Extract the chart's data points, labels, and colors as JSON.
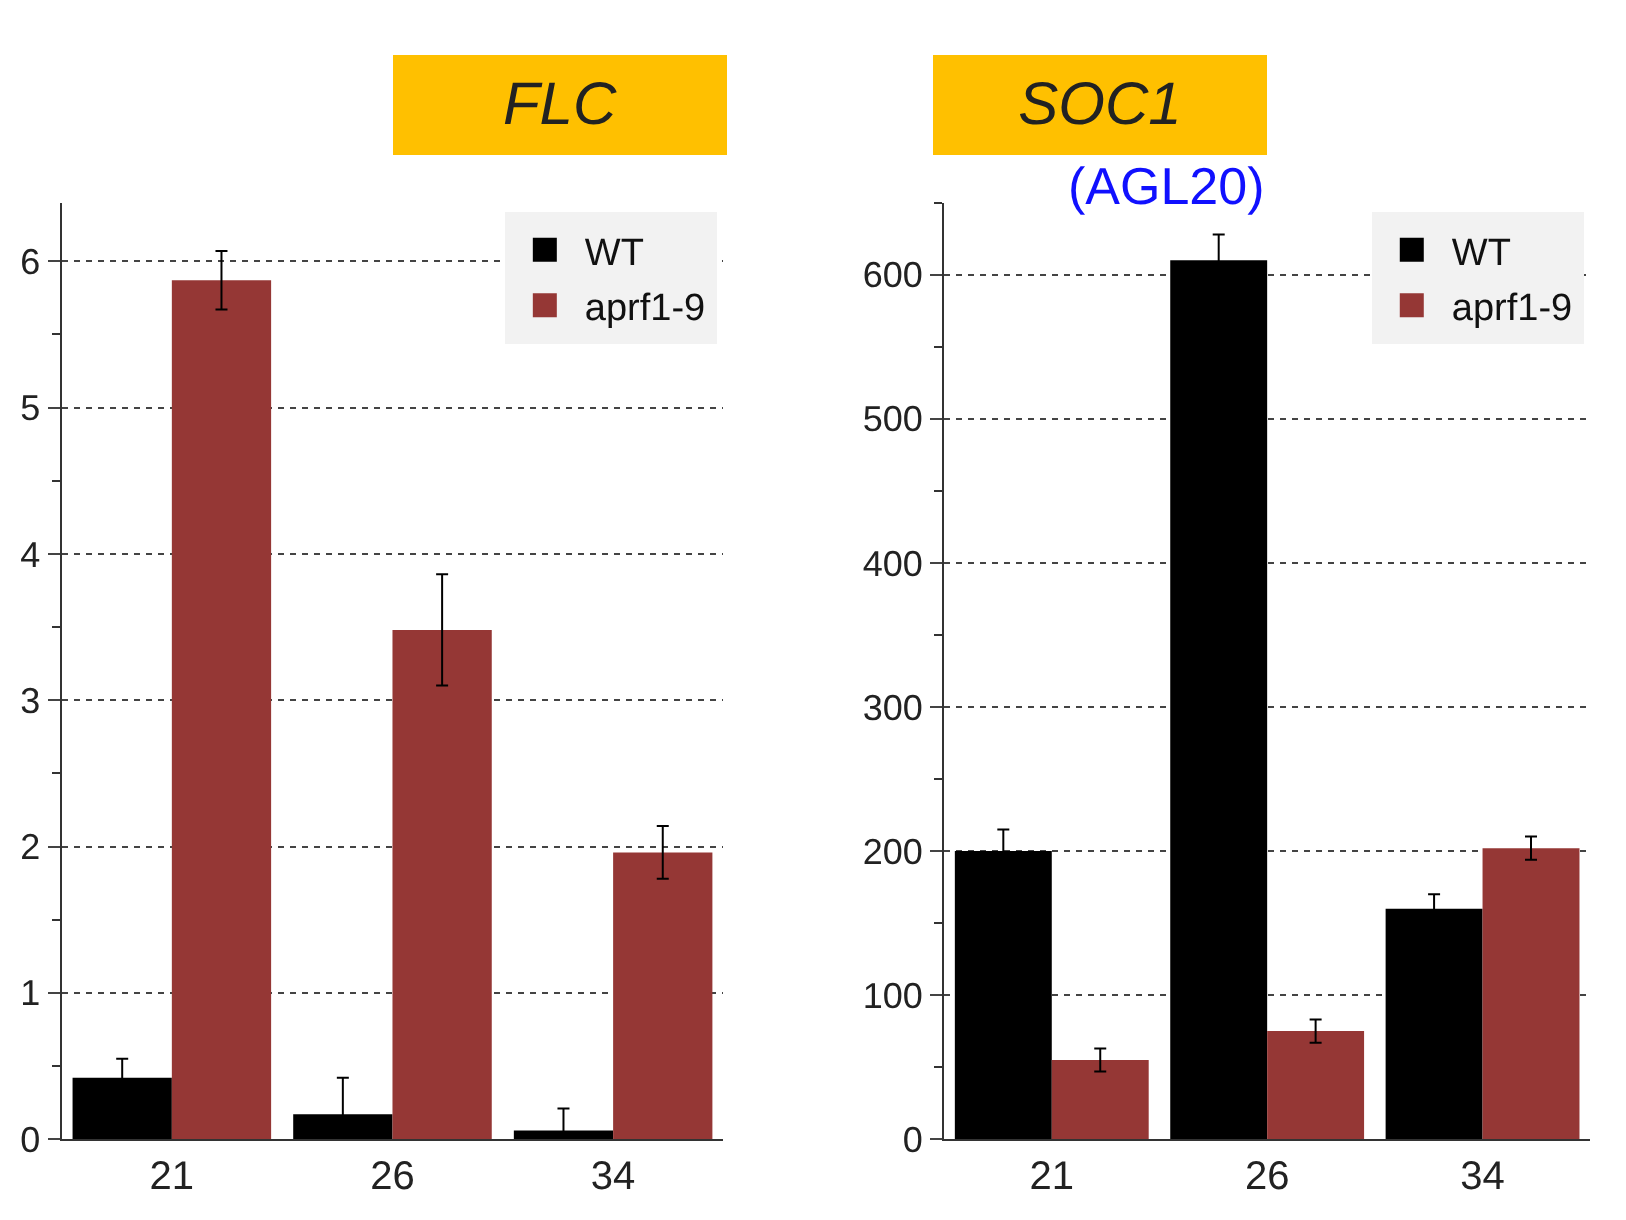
{
  "chart_data": [
    {
      "type": "bar",
      "title": "FLC",
      "categories": [
        "21",
        "26",
        "34"
      ],
      "series": [
        {
          "name": "WT",
          "color": "#000000",
          "values": [
            0.42,
            0.17,
            0.06
          ],
          "errors": [
            0.13,
            0.25,
            0.15
          ]
        },
        {
          "name": "aprf1-9",
          "color": "#953735",
          "values": [
            5.87,
            3.48,
            1.96
          ],
          "errors": [
            0.2,
            0.38,
            0.18
          ]
        }
      ],
      "ylim": [
        0,
        6.4
      ],
      "yticks": [
        0,
        1,
        2,
        3,
        4,
        5,
        6
      ],
      "grid": "y",
      "legend": "top right"
    },
    {
      "type": "bar",
      "title": "SOC1",
      "subtitle": "(AGL20)",
      "categories": [
        "21",
        "26",
        "34"
      ],
      "series": [
        {
          "name": "WT",
          "color": "#000000",
          "values": [
            200,
            610,
            160
          ],
          "errors": [
            15,
            18,
            10
          ]
        },
        {
          "name": "aprf1-9",
          "color": "#953735",
          "values": [
            55,
            75,
            202
          ],
          "errors": [
            8,
            8,
            8
          ]
        }
      ],
      "ylim": [
        0,
        650
      ],
      "yticks": [
        0,
        100,
        200,
        300,
        400,
        500,
        600
      ],
      "grid": "y",
      "legend": "top right"
    }
  ]
}
